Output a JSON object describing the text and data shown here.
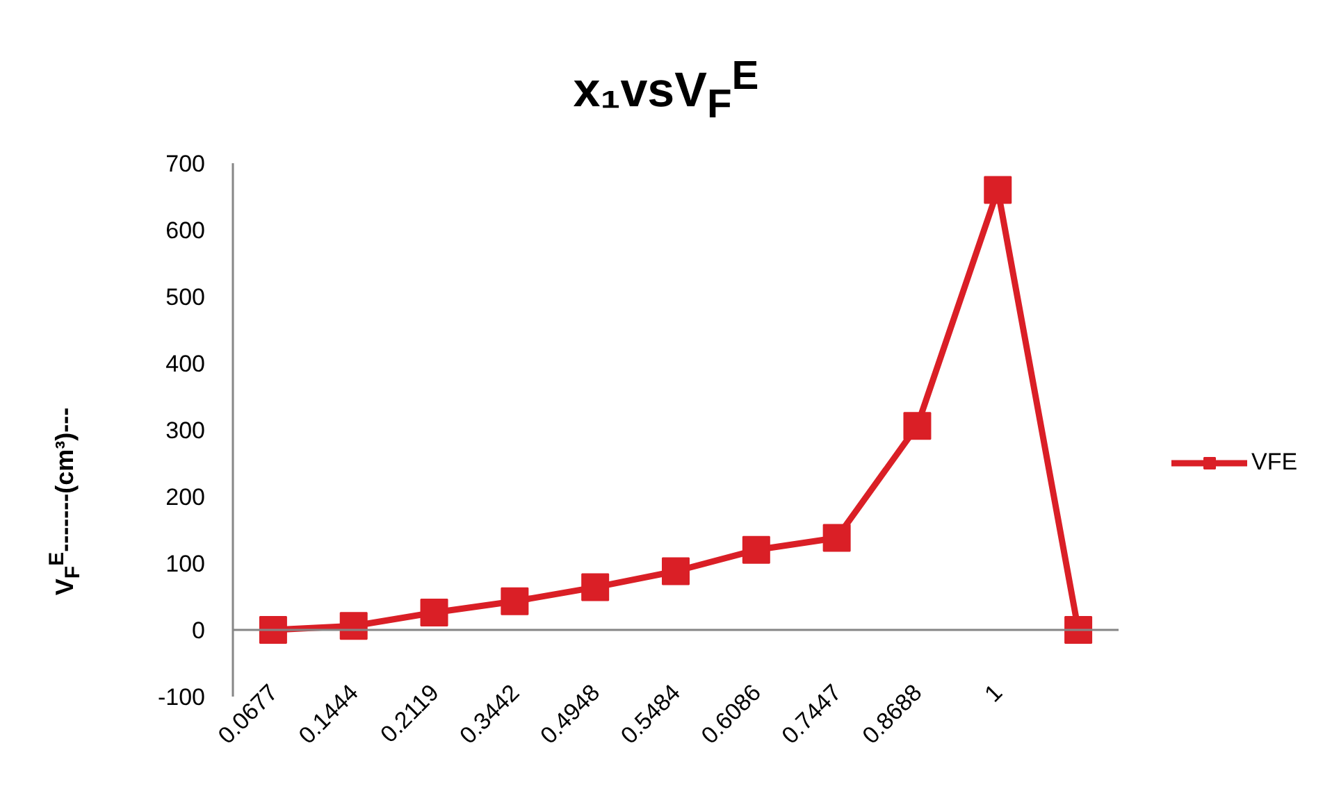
{
  "chart_data": {
    "type": "line",
    "title": "x₁vsV$_{F}$$^{E}$",
    "ylabel": "V$_{F}$$^{E}$-------(cm³)---",
    "categories": [
      "0.0677",
      "0.1444",
      "0.2119",
      "0.3442",
      "0.4948",
      "0.5484",
      "0.6086",
      "0.7447",
      "0.8688",
      "1",
      null
    ],
    "series": [
      {
        "name": "VFE",
        "color": "#da1f26",
        "values": [
          0,
          6,
          26,
          43,
          64,
          88,
          120,
          138,
          306,
          660,
          0
        ]
      }
    ],
    "ylim": [
      -100,
      700
    ],
    "yticks": [
      -100,
      0,
      100,
      200,
      300,
      400,
      500,
      600,
      700
    ],
    "grid": false,
    "legend": "right",
    "marker": "square",
    "line_style": "solid"
  }
}
